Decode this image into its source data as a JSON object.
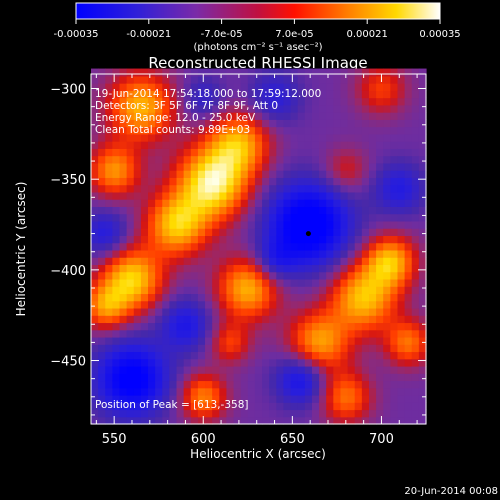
{
  "colorbar": {
    "ticks": [
      "-0.00035",
      "-0.00021",
      "-7.0e-05",
      "7.0e-05",
      "0.00021",
      "0.00035"
    ],
    "tick_values": [
      -0.00035,
      -0.00021,
      -7e-05,
      7e-05,
      0.00021,
      0.00035
    ],
    "range": [
      -0.00035,
      0.00035
    ],
    "unit_label": "(photons cm⁻² s⁻¹ asec⁻²)",
    "colors": [
      "#0000ff",
      "#5a2fd0",
      "#9a1a80",
      "#ff0000",
      "#ff8000",
      "#ffff00",
      "#ffffff"
    ]
  },
  "chart_data": {
    "type": "heatmap",
    "title": "Reconstructed RHESSI Image",
    "xlabel": "Heliocentric X (arcsec)",
    "ylabel": "Heliocentric Y (arcsec)",
    "xlim": [
      537,
      725
    ],
    "ylim": [
      -485,
      -292
    ],
    "x_ticks": [
      550,
      600,
      650,
      700
    ],
    "y_ticks": [
      -300,
      -350,
      -400,
      -450
    ],
    "annotations": [
      "19-Jun-2014 17:54:18.000 to 17:59:12.000",
      "Detectors: 3F 5F 6F 7F 8F 9F, Att 0",
      "Energy Range: 12.0 - 25.0 keV",
      "Clean    Total counts: 9.89E+03"
    ],
    "peak_text": "Position of Peak = [613,-358]",
    "marker": {
      "x": 659,
      "y": -380
    },
    "blobs": [
      {
        "x": 605,
        "y": -352,
        "amp": 1.0,
        "sigma": 14
      },
      {
        "x": 585,
        "y": -375,
        "amp": 0.8,
        "sigma": 12
      },
      {
        "x": 620,
        "y": -330,
        "amp": 0.7,
        "sigma": 12
      },
      {
        "x": 565,
        "y": -310,
        "amp": 0.75,
        "sigma": 13
      },
      {
        "x": 550,
        "y": -345,
        "amp": 0.65,
        "sigma": 10
      },
      {
        "x": 560,
        "y": -405,
        "amp": 0.85,
        "sigma": 12
      },
      {
        "x": 545,
        "y": -420,
        "amp": 0.6,
        "sigma": 9
      },
      {
        "x": 625,
        "y": -410,
        "amp": 0.75,
        "sigma": 12
      },
      {
        "x": 690,
        "y": -415,
        "amp": 0.8,
        "sigma": 13
      },
      {
        "x": 705,
        "y": -395,
        "amp": 0.75,
        "sigma": 10
      },
      {
        "x": 715,
        "y": -440,
        "amp": 0.55,
        "sigma": 9
      },
      {
        "x": 665,
        "y": -440,
        "amp": 0.7,
        "sigma": 12
      },
      {
        "x": 680,
        "y": -470,
        "amp": 0.55,
        "sigma": 10
      },
      {
        "x": 600,
        "y": -470,
        "amp": 0.6,
        "sigma": 9
      },
      {
        "x": 615,
        "y": -440,
        "amp": 0.4,
        "sigma": 8
      },
      {
        "x": 700,
        "y": -300,
        "amp": 0.4,
        "sigma": 10
      },
      {
        "x": 680,
        "y": -345,
        "amp": 0.3,
        "sigma": 9
      },
      {
        "x": 659,
        "y": -375,
        "amp": -0.9,
        "sigma": 16
      },
      {
        "x": 560,
        "y": -460,
        "amp": -0.8,
        "sigma": 14
      },
      {
        "x": 655,
        "y": -460,
        "amp": -0.55,
        "sigma": 10
      },
      {
        "x": 590,
        "y": -430,
        "amp": -0.45,
        "sigma": 10
      },
      {
        "x": 710,
        "y": -355,
        "amp": -0.4,
        "sigma": 10
      },
      {
        "x": 545,
        "y": -380,
        "amp": -0.4,
        "sigma": 9
      },
      {
        "x": 640,
        "y": -305,
        "amp": -0.35,
        "sigma": 10
      },
      {
        "x": 600,
        "y": -305,
        "amp": -0.3,
        "sigma": 8
      },
      {
        "x": 640,
        "y": -395,
        "amp": -0.35,
        "sigma": 8
      }
    ]
  },
  "footer_date": "20-Jun-2014 00:08"
}
